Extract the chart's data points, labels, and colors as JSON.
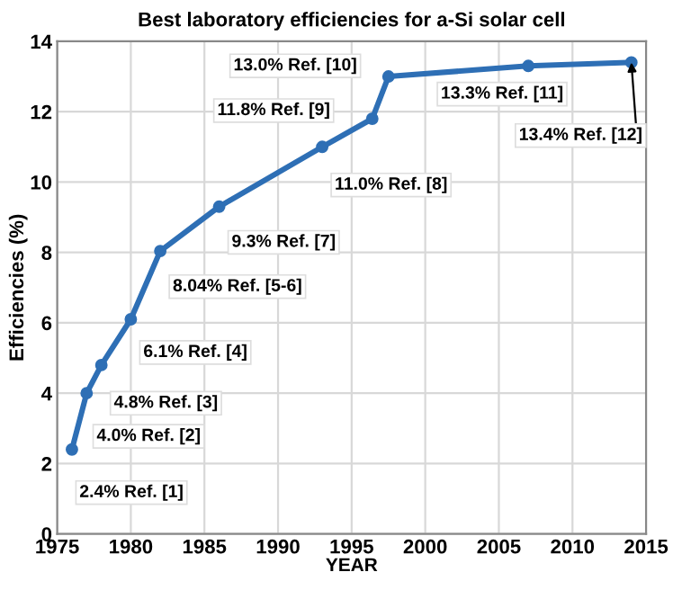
{
  "chart_data": {
    "type": "line",
    "title": "Best laboratory efficiencies for a-Si solar cell",
    "xlabel": "YEAR",
    "ylabel": "Efficiencies (%)",
    "x": [
      1976,
      1977,
      1978,
      1980,
      1982,
      1986,
      1993,
      1996.4,
      1997.5,
      2007,
      2014
    ],
    "series": [
      {
        "color": "#2e6fb5",
        "values": [
          2.4,
          4.0,
          4.8,
          6.1,
          8.04,
          9.3,
          11.0,
          11.8,
          13.0,
          13.3,
          13.4
        ]
      }
    ],
    "annotations": [
      {
        "text": "2.4% Ref. [1]",
        "x": 1976,
        "y": 2.4
      },
      {
        "text": "4.0% Ref. [2]",
        "x": 1977,
        "y": 4.0
      },
      {
        "text": "4.8% Ref. [3]",
        "x": 1978,
        "y": 4.8
      },
      {
        "text": "6.1% Ref. [4]",
        "x": 1980,
        "y": 6.1
      },
      {
        "text": "8.04% Ref. [5-6]",
        "x": 1982,
        "y": 8.04
      },
      {
        "text": "9.3% Ref. [7]",
        "x": 1986,
        "y": 9.3
      },
      {
        "text": "11.0% Ref. [8]",
        "x": 1993,
        "y": 11.0
      },
      {
        "text": "11.8% Ref. [9]",
        "x": 1996.4,
        "y": 11.8
      },
      {
        "text": "13.0% Ref. [10]",
        "x": 1997.5,
        "y": 13.0
      },
      {
        "text": "13.3% Ref. [11]",
        "x": 2007,
        "y": 13.3
      },
      {
        "text": "13.4% Ref. [12]",
        "x": 2014,
        "y": 13.4
      }
    ],
    "xlim": [
      1975,
      2015
    ],
    "xticks": [
      1975,
      1980,
      1985,
      1990,
      1995,
      2000,
      2005,
      2010,
      2015
    ],
    "ylim": [
      0,
      14
    ],
    "yticks": [
      0,
      2,
      4,
      6,
      8,
      10,
      12,
      14
    ],
    "grid": true,
    "marker": "circle",
    "line_style": "solid",
    "legend": false
  }
}
